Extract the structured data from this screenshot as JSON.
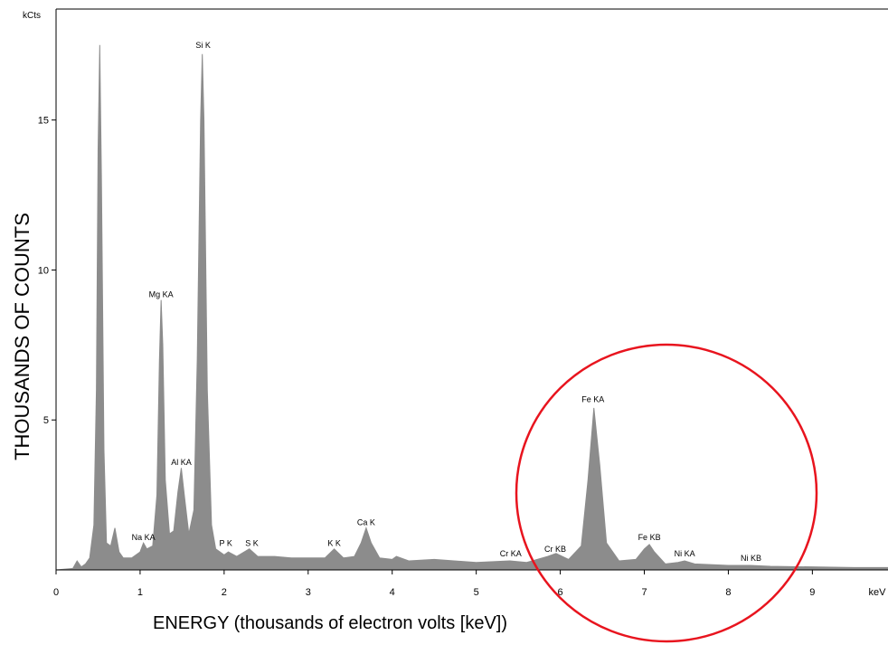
{
  "chart_data": {
    "type": "area",
    "y_label": "THOUSANDS OF COUNTS",
    "x_label": "ENERGY (thousands of electron volts [keV])",
    "y_unit": "kCts",
    "x_unit": "keV",
    "color": "#8c8c8c",
    "x": [
      0,
      0.2,
      0.25,
      0.3,
      0.35,
      0.4,
      0.45,
      0.48,
      0.5,
      0.52,
      0.54,
      0.57,
      0.6,
      0.65,
      0.7,
      0.75,
      0.8,
      0.9,
      1.0,
      1.04,
      1.08,
      1.15,
      1.2,
      1.23,
      1.25,
      1.27,
      1.3,
      1.35,
      1.4,
      1.45,
      1.49,
      1.53,
      1.58,
      1.64,
      1.68,
      1.72,
      1.74,
      1.76,
      1.8,
      1.85,
      1.9,
      2.0,
      2.05,
      2.15,
      2.3,
      2.4,
      2.6,
      2.8,
      3.0,
      3.2,
      3.31,
      3.42,
      3.55,
      3.63,
      3.69,
      3.75,
      3.85,
      4.0,
      4.05,
      4.2,
      4.5,
      5.0,
      5.4,
      5.6,
      5.85,
      5.95,
      6.1,
      6.25,
      6.33,
      6.4,
      6.47,
      6.55,
      6.7,
      6.9,
      7.0,
      7.06,
      7.12,
      7.25,
      7.4,
      7.48,
      7.6,
      8.0,
      8.26,
      8.5,
      9.0,
      9.5,
      9.9
    ],
    "values": [
      0,
      0.05,
      0.3,
      0.1,
      0.2,
      0.4,
      1.5,
      6,
      14,
      17.5,
      13,
      4,
      0.9,
      0.8,
      1.4,
      0.6,
      0.4,
      0.4,
      0.6,
      0.9,
      0.7,
      0.8,
      2.5,
      7,
      9.0,
      7.5,
      3,
      1.2,
      1.3,
      2.6,
      3.4,
      2.4,
      1.2,
      2,
      7,
      15,
      17.2,
      15,
      6,
      1.5,
      0.7,
      0.5,
      0.6,
      0.45,
      0.7,
      0.45,
      0.45,
      0.4,
      0.4,
      0.4,
      0.7,
      0.4,
      0.45,
      0.9,
      1.4,
      0.9,
      0.4,
      0.35,
      0.45,
      0.3,
      0.35,
      0.25,
      0.3,
      0.25,
      0.45,
      0.55,
      0.35,
      0.8,
      3,
      5.4,
      3.5,
      0.9,
      0.3,
      0.35,
      0.7,
      0.85,
      0.6,
      0.2,
      0.25,
      0.3,
      0.2,
      0.15,
      0.15,
      0.12,
      0.1,
      0.08,
      0.08
    ],
    "xlim": [
      0,
      9.9
    ],
    "xticks": [
      0,
      1,
      2,
      3,
      4,
      5,
      6,
      7,
      8,
      9
    ],
    "ylim": [
      0,
      18.7
    ],
    "yticks": [
      5,
      10,
      15
    ],
    "annotations": [
      {
        "text": "Na KA",
        "x": 1.04,
        "y": 1.0
      },
      {
        "text": "Mg KA",
        "x": 1.25,
        "y": 9.1
      },
      {
        "text": "Al KA",
        "x": 1.49,
        "y": 3.5
      },
      {
        "text": "Si K",
        "x": 1.75,
        "y": 17.4
      },
      {
        "text": "P K",
        "x": 2.02,
        "y": 0.8
      },
      {
        "text": "S K",
        "x": 2.33,
        "y": 0.8
      },
      {
        "text": "K K",
        "x": 3.31,
        "y": 0.8
      },
      {
        "text": "Ca K",
        "x": 3.69,
        "y": 1.5
      },
      {
        "text": "Cr KA",
        "x": 5.41,
        "y": 0.45
      },
      {
        "text": "Cr KB",
        "x": 5.94,
        "y": 0.6
      },
      {
        "text": "Fe KA",
        "x": 6.39,
        "y": 5.6
      },
      {
        "text": "Fe KB",
        "x": 7.06,
        "y": 1.0
      },
      {
        "text": "Ni KA",
        "x": 7.48,
        "y": 0.45
      },
      {
        "text": "Ni KB",
        "x": 8.27,
        "y": 0.3
      }
    ]
  }
}
